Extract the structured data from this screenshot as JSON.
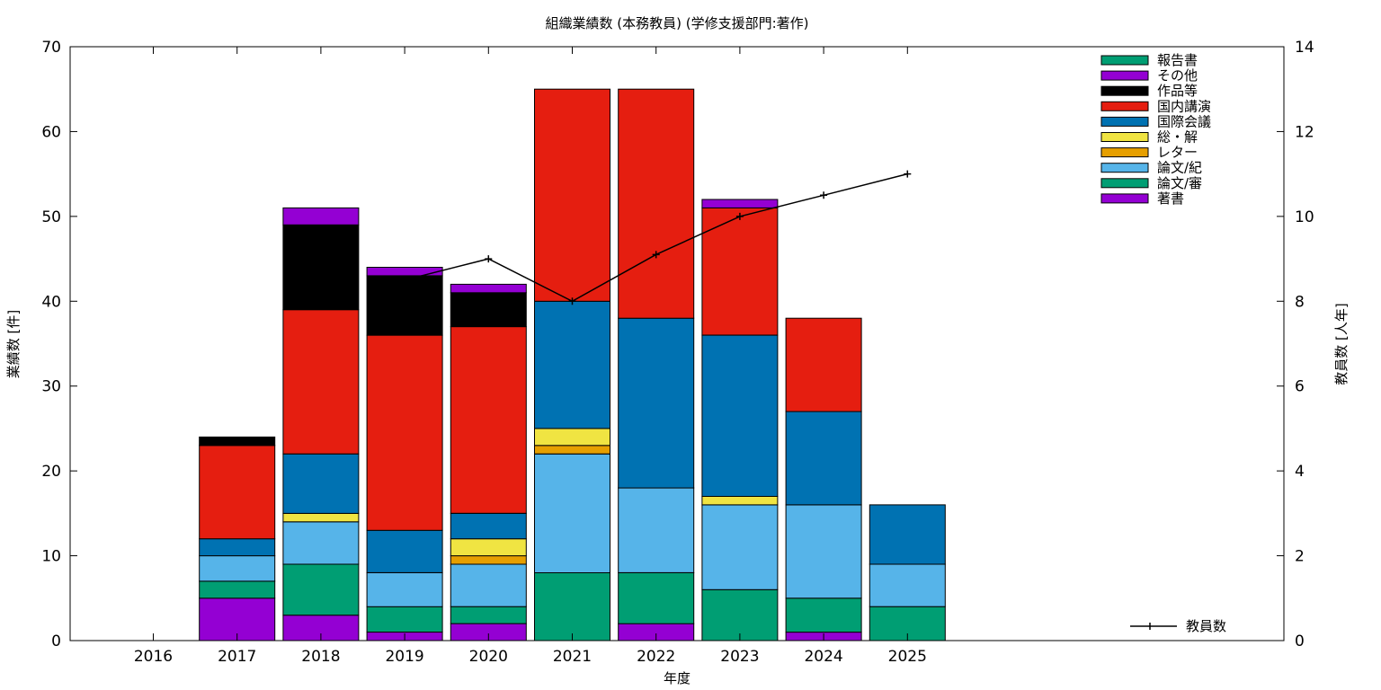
{
  "chart_data": {
    "type": "bar",
    "title": "組織業績数 (本務教員) (学修支援部門:著作)",
    "xlabel": "年度",
    "ylabel": "業績数 [件]",
    "y2label": "教員数 [人年]",
    "ylim": [
      0,
      70
    ],
    "y2lim": [
      0,
      14
    ],
    "yticks": [
      0,
      10,
      20,
      30,
      40,
      50,
      60,
      70
    ],
    "y2ticks": [
      0,
      2,
      4,
      6,
      8,
      10,
      12,
      14
    ],
    "categories": [
      "2016",
      "2017",
      "2018",
      "2019",
      "2020",
      "2021",
      "2022",
      "2023",
      "2024",
      "2025"
    ],
    "stacked": true,
    "legend_position": "top-right",
    "series": [
      {
        "name": "著書",
        "color": "#9400d3",
        "values": [
          0,
          5,
          3,
          1,
          2,
          0,
          2,
          0,
          1,
          0
        ]
      },
      {
        "name": "論文/審",
        "color": "#009e73",
        "values": [
          0,
          2,
          6,
          3,
          2,
          8,
          6,
          6,
          4,
          4
        ]
      },
      {
        "name": "論文/紀",
        "color": "#56b4e9",
        "values": [
          0,
          3,
          5,
          4,
          5,
          14,
          10,
          10,
          11,
          5
        ]
      },
      {
        "name": "レター",
        "color": "#e69f00",
        "values": [
          0,
          0,
          0,
          0,
          1,
          1,
          0,
          0,
          0,
          0
        ]
      },
      {
        "name": "総・解",
        "color": "#f0e442",
        "values": [
          0,
          0,
          1,
          0,
          2,
          2,
          0,
          1,
          0,
          0
        ]
      },
      {
        "name": "国際会議",
        "color": "#0072b2",
        "values": [
          0,
          2,
          7,
          5,
          3,
          15,
          20,
          19,
          11,
          7
        ]
      },
      {
        "name": "国内講演",
        "color": "#e51e10",
        "values": [
          0,
          11,
          17,
          23,
          22,
          25,
          27,
          15,
          11,
          0
        ]
      },
      {
        "name": "作品等",
        "color": "#000000",
        "values": [
          0,
          1,
          10,
          7,
          4,
          0,
          0,
          0,
          0,
          0
        ]
      },
      {
        "name": "その他",
        "color": "#9400d3",
        "values": [
          0,
          0,
          2,
          1,
          1,
          0,
          0,
          1,
          0,
          0
        ]
      },
      {
        "name": "報告書",
        "color": "#009e73",
        "values": [
          0,
          0,
          0,
          0,
          0,
          0,
          0,
          0,
          0,
          0
        ]
      }
    ],
    "line_series": {
      "name": "教員数",
      "color": "#000000",
      "axis": "right",
      "x": [
        "2019",
        "2020",
        "2021",
        "2022",
        "2023",
        "2024",
        "2025"
      ],
      "values": [
        8.5,
        9,
        8,
        9.1,
        10,
        10.5,
        11
      ]
    }
  }
}
